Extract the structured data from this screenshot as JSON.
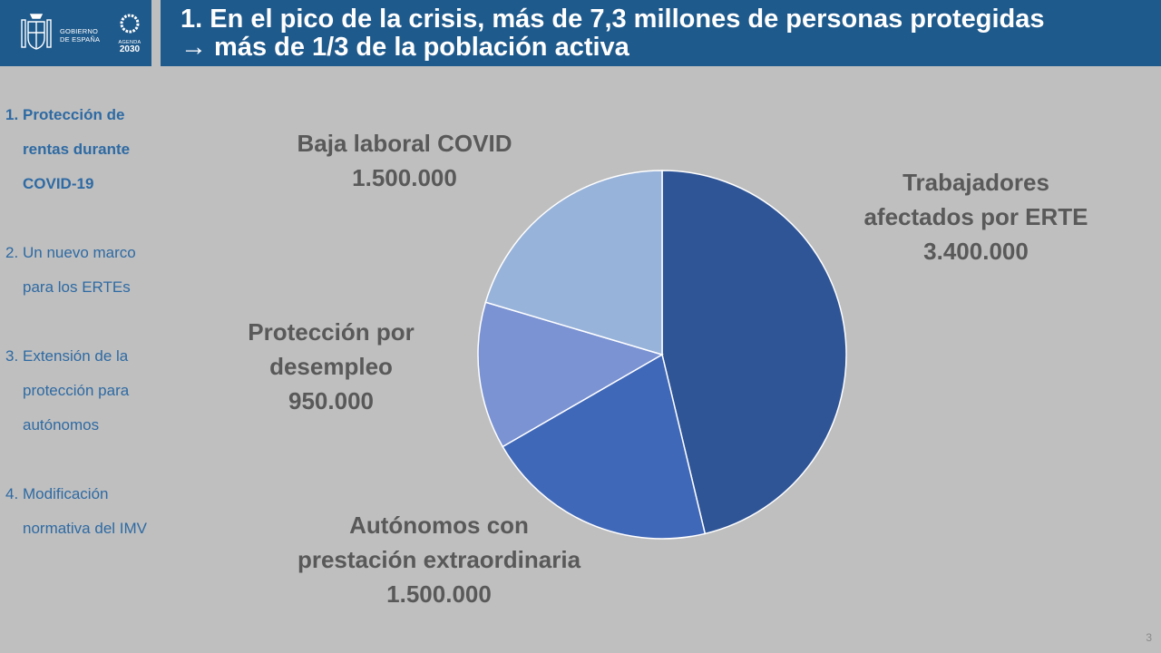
{
  "header": {
    "title_line1": "1. En el pico de la crisis, más de 7,3 millones de personas protegidas",
    "title_line2": "→ más de 1/3 de la población activa",
    "gov_line1": "GOBIERNO",
    "gov_line2": "DE ESPAÑA",
    "agenda_small": "AGENDA",
    "agenda_year": "2030"
  },
  "sidebar": {
    "items": [
      {
        "num": "1.",
        "label": "Protección de rentas durante COVID-19",
        "active": true
      },
      {
        "num": "2.",
        "label": "Un nuevo marco para los ERTEs",
        "active": false
      },
      {
        "num": "3.",
        "label": "Extensión de la protección para autónomos",
        "active": false
      },
      {
        "num": "4.",
        "label": "Modificación normativa del IMV",
        "active": false
      }
    ]
  },
  "chart_data": {
    "type": "pie",
    "title": "",
    "start_angle_deg": 0,
    "direction": "clockwise",
    "slices": [
      {
        "label_lines": [
          "Trabajadores",
          "afectados por ERTE"
        ],
        "value_text": "3.400.000",
        "value": 3400000,
        "color": "#2f5597"
      },
      {
        "label_lines": [
          "Autónomos con",
          "prestación extraordinaria"
        ],
        "value_text": "1.500.000",
        "value": 1500000,
        "color": "#4068b8"
      },
      {
        "label_lines": [
          "Protección por",
          "desempleo"
        ],
        "value_text": "950.000",
        "value": 950000,
        "color": "#7b93d3"
      },
      {
        "label_lines": [
          "Baja laboral COVID"
        ],
        "value_text": "1.500.000",
        "value": 1500000,
        "color": "#98b3da"
      }
    ]
  },
  "footer": {
    "page_number": "3"
  }
}
